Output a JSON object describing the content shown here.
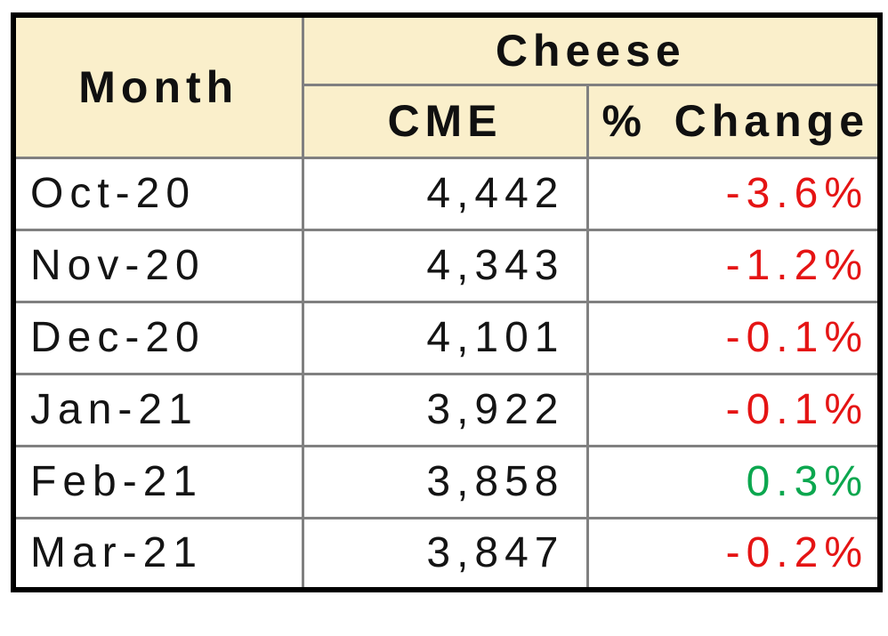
{
  "table": {
    "group_header": "Cheese",
    "columns": {
      "month": "Month",
      "cme": "CME",
      "pct_symbol": "%",
      "pct_word": "Change"
    },
    "rows": [
      {
        "month": "Oct-20",
        "cme": "4,442",
        "pct": "-3.6%",
        "trend": "negative"
      },
      {
        "month": "Nov-20",
        "cme": "4,343",
        "pct": "-1.2%",
        "trend": "negative"
      },
      {
        "month": "Dec-20",
        "cme": "4,101",
        "pct": "-0.1%",
        "trend": "negative"
      },
      {
        "month": "Jan-21",
        "cme": "3,922",
        "pct": "-0.1%",
        "trend": "negative"
      },
      {
        "month": "Feb-21",
        "cme": "3,858",
        "pct": "0.3%",
        "trend": "positive"
      },
      {
        "month": "Mar-21",
        "cme": "3,847",
        "pct": "-0.2%",
        "trend": "negative"
      }
    ]
  },
  "colors": {
    "header_bg": "#FAEFCB",
    "negative": "#E51414",
    "positive": "#0CA74F",
    "grid": "#808080",
    "outer_border": "#000000"
  },
  "chart_data": {
    "type": "table",
    "title": "Cheese",
    "columns": [
      "Month",
      "CME",
      "% Change"
    ],
    "rows": [
      [
        "Oct-20",
        4442,
        -3.6
      ],
      [
        "Nov-20",
        4343,
        -1.2
      ],
      [
        "Dec-20",
        4101,
        -0.1
      ],
      [
        "Jan-21",
        3922,
        -0.1
      ],
      [
        "Feb-21",
        3858,
        0.3
      ],
      [
        "Mar-21",
        3847,
        -0.2
      ]
    ]
  }
}
